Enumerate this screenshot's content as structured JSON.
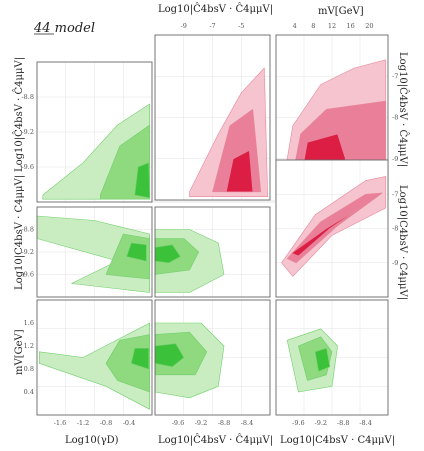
{
  "figure": {
    "title": "44 model"
  },
  "colors": {
    "green": [
      "#c9edc1",
      "#8fd97f",
      "#3cc23a"
    ],
    "green_edge": "#6fcf6a",
    "red": [
      "#f5c4cf",
      "#e97f98",
      "#dc1e45"
    ],
    "red_edge": "#e7879c"
  },
  "chart_data": {
    "type": "corner",
    "title": "44 model",
    "parameters": [
      {
        "key": "loggD",
        "label": "Log10(γD)",
        "range": [
          -1.8,
          -0.3
        ],
        "ticks": [
          "-1.6",
          "-1.2",
          "-0.8",
          "-0.4"
        ]
      },
      {
        "key": "cc",
        "label": "Log10|C4bsV · C4μμV|",
        "range": [
          -10.0,
          -8.2
        ],
        "ticks": [
          "-9.6",
          "-9.2",
          "-8.8",
          "-8.4"
        ]
      },
      {
        "key": "ccHat",
        "label": "Log10|Ĉ4bsV · Ĉ4μμV|",
        "range": [
          -10,
          -4.5
        ],
        "ticks": [
          "-9",
          "-7",
          "-5"
        ]
      },
      {
        "key": "mV",
        "label": "mV[GeV]",
        "range": [
          0,
          20
        ],
        "ticks": [
          "4",
          "8",
          "12",
          "16",
          "20"
        ]
      },
      {
        "key": "ccRight",
        "label": "Log10|C4bsV · C4μμV|",
        "range": [
          -10.0,
          -8.2
        ],
        "ticks": [
          "-9.6",
          "-9.2",
          "-8.8",
          "-8.4"
        ]
      },
      {
        "key": "mVLeft",
        "label": "mV[GeV]",
        "range": [
          0,
          1.8
        ],
        "ticks": [
          "0.4",
          "0.8",
          "1.2",
          "1.6"
        ]
      }
    ],
    "panels": [
      {
        "id": "hat-vs-gamma",
        "x": "loggD",
        "y": "ccHat",
        "ylabel": "Log10|Ĉ4bsV · Ĉ4μμV|",
        "yticks": [
          "-8.8",
          "-9.2",
          "-9.6"
        ],
        "ylim": [
          -9.8,
          -8.4
        ],
        "color": "green"
      },
      {
        "id": "cc-vs-gamma",
        "x": "loggD",
        "y": "cc",
        "ylabel": "Log10|C4bsV · C4μμV|",
        "yticks": [
          "-8.8",
          "-9.2",
          "-9.6"
        ],
        "ylim": [
          -9.8,
          -8.4
        ],
        "color": "green"
      },
      {
        "id": "mv-vs-gamma",
        "x": "loggD",
        "y": "mVLeft",
        "ylabel": "mV[GeV]",
        "yticks": [
          "1.6",
          "1.2",
          "0.8",
          "0.4"
        ],
        "ylim": [
          0,
          1.8
        ],
        "color": "green"
      },
      {
        "id": "cc-vs-hat",
        "x": "ccHat",
        "y": "cc",
        "color": "green"
      },
      {
        "id": "mv-vs-hat",
        "x": "ccHat",
        "y": "mVLeft",
        "color": "green"
      },
      {
        "id": "mv-vs-cc",
        "x": "ccRight",
        "y": "mVLeft",
        "color": "green"
      },
      {
        "id": "hat-vs-cchat-top",
        "x": "ccHat",
        "y": "ccHat",
        "color": "red"
      },
      {
        "id": "hat-vs-mv-top",
        "x": "mV",
        "y": "ccHat",
        "ylabel": "Log10|Ĉ4bsV · Ĉ4μμV|",
        "yticks": [
          "-7",
          "-8",
          "-9"
        ],
        "color": "red"
      },
      {
        "id": "cc-vs-mv-right",
        "x": "mV",
        "y": "cc",
        "ylabel": "Log10|C4bsV · C4μμV|",
        "yticks": [
          "-7",
          "-8",
          "-9"
        ],
        "color": "red"
      }
    ],
    "credible_levels": [
      "outer",
      "middle",
      "inner"
    ],
    "grid": true,
    "legend": "none"
  }
}
